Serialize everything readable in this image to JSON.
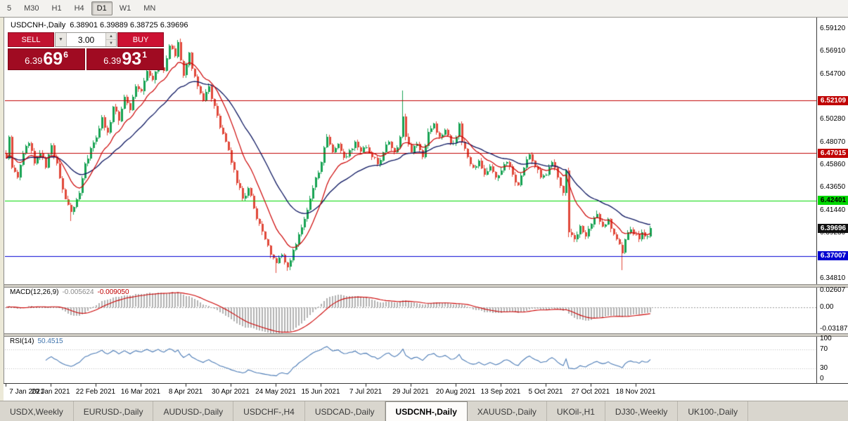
{
  "toolbar": {
    "items": [
      "5",
      "M30",
      "H1",
      "H4",
      "D1",
      "W1",
      "MN"
    ],
    "active": "D1"
  },
  "chart": {
    "header_symbol": "USDCNH-,Daily",
    "header_ohlc": "6.38901 6.39889 6.38725 6.39696"
  },
  "trade_panel": {
    "sell_label": "SELL",
    "buy_label": "BUY",
    "volume": "3.00",
    "sell": {
      "main": "6.39",
      "pips": "69",
      "point": "6"
    },
    "buy": {
      "main": "6.39",
      "pips": "93",
      "point": "1"
    }
  },
  "macd": {
    "name": "MACD(12,26,9)",
    "value_main": "-0.005624",
    "value_signal": "-0.009050",
    "scale": [
      "0.02607",
      "0.00",
      "-0.03187"
    ]
  },
  "rsi": {
    "name": "RSI(14)",
    "value": "50.4515",
    "scale": [
      "100",
      "70",
      "30",
      "0"
    ],
    "levels": [
      70,
      30
    ]
  },
  "time_axis": [
    "7 Jan 2021",
    "29 Jan 2021",
    "22 Feb 2021",
    "16 Mar 2021",
    "8 Apr 2021",
    "30 Apr 2021",
    "24 May 2021",
    "15 Jun 2021",
    "7 Jul 2021",
    "29 Jul 2021",
    "20 Aug 2021",
    "13 Sep 2021",
    "5 Oct 2021",
    "27 Oct 2021",
    "18 Nov 2021"
  ],
  "tabs": [
    {
      "label": "USDX,Weekly",
      "active": false
    },
    {
      "label": "EURUSD-,Daily",
      "active": false
    },
    {
      "label": "AUDUSD-,Daily",
      "active": false
    },
    {
      "label": "USDCHF-,H4",
      "active": false
    },
    {
      "label": "USDCAD-,Daily",
      "active": false
    },
    {
      "label": "USDCNH-,Daily",
      "active": true
    },
    {
      "label": "XAUUSD-,Daily",
      "active": false
    },
    {
      "label": "UKOil-,H1",
      "active": false
    },
    {
      "label": "DJ30-,Weekly",
      "active": false
    },
    {
      "label": "UK100-,Daily",
      "active": false
    }
  ],
  "chart_data": {
    "type": "candlestick",
    "symbol": "USDCNH-",
    "timeframe": "Daily",
    "candle_count": 230,
    "tick_every": 16,
    "y_min": 6.3425,
    "y_max": 6.602,
    "y_ticks": [
      6.5912,
      6.5691,
      6.547,
      6.5028,
      6.4807,
      6.4586,
      6.4365,
      6.4144,
      6.3923,
      6.3481
    ],
    "hlines": [
      {
        "price": 6.52109,
        "label": "6.52109",
        "color": "#c00000",
        "text_color": "#ffffff"
      },
      {
        "price": 6.47015,
        "label": "6.47015",
        "color": "#c00000",
        "text_color": "#ffffff"
      },
      {
        "price": 6.42401,
        "label": "6.42401",
        "color": "#00d800",
        "text_color": "#000000"
      },
      {
        "price": 6.37007,
        "label": "6.37007",
        "color": "#0000d0",
        "text_color": "#ffffff"
      }
    ],
    "price_tag": {
      "price": 6.39696,
      "label": "6.39696",
      "color": "#101010",
      "text_color": "#ffffff"
    },
    "up_color": "#17a253",
    "down_color": "#e0483a",
    "ma_fast": {
      "period": 12,
      "color": "#cc0000"
    },
    "ma_slow": {
      "period": 30,
      "color": "#0c1660"
    },
    "macd_range": [
      -0.0355,
      0.0285
    ],
    "noise": 0.0028,
    "first_open": 6.47,
    "waypoints": [
      [
        0,
        6.465
      ],
      [
        1,
        6.486
      ],
      [
        2,
        6.456
      ],
      [
        4,
        6.446
      ],
      [
        6,
        6.47
      ],
      [
        8,
        6.48
      ],
      [
        10,
        6.46
      ],
      [
        12,
        6.47
      ],
      [
        14,
        6.456
      ],
      [
        16,
        6.478
      ],
      [
        18,
        6.46
      ],
      [
        20,
        6.435
      ],
      [
        23,
        6.413
      ],
      [
        26,
        6.431
      ],
      [
        28,
        6.46
      ],
      [
        30,
        6.475
      ],
      [
        32,
        6.485
      ],
      [
        34,
        6.505
      ],
      [
        36,
        6.49
      ],
      [
        38,
        6.515
      ],
      [
        40,
        6.501
      ],
      [
        42,
        6.525
      ],
      [
        44,
        6.512
      ],
      [
        46,
        6.535
      ],
      [
        48,
        6.53
      ],
      [
        50,
        6.55
      ],
      [
        52,
        6.541
      ],
      [
        54,
        6.56
      ],
      [
        56,
        6.55
      ],
      [
        58,
        6.575
      ],
      [
        60,
        6.564
      ],
      [
        61,
        6.578
      ],
      [
        62,
        6.56
      ],
      [
        63,
        6.546
      ],
      [
        64,
        6.556
      ],
      [
        65,
        6.568
      ],
      [
        66,
        6.552
      ],
      [
        68,
        6.535
      ],
      [
        70,
        6.521
      ],
      [
        72,
        6.535
      ],
      [
        74,
        6.516
      ],
      [
        76,
        6.495
      ],
      [
        78,
        6.481
      ],
      [
        80,
        6.461
      ],
      [
        82,
        6.441
      ],
      [
        84,
        6.426
      ],
      [
        86,
        6.436
      ],
      [
        88,
        6.416
      ],
      [
        90,
        6.401
      ],
      [
        92,
        6.386
      ],
      [
        94,
        6.371
      ],
      [
        96,
        6.363
      ],
      [
        98,
        6.371
      ],
      [
        100,
        6.359
      ],
      [
        102,
        6.376
      ],
      [
        104,
        6.391
      ],
      [
        106,
        6.406
      ],
      [
        108,
        6.426
      ],
      [
        110,
        6.446
      ],
      [
        112,
        6.461
      ],
      [
        113,
        6.476
      ],
      [
        114,
        6.486
      ],
      [
        116,
        6.471
      ],
      [
        118,
        6.479
      ],
      [
        120,
        6.466
      ],
      [
        122,
        6.473
      ],
      [
        124,
        6.481
      ],
      [
        126,
        6.471
      ],
      [
        128,
        6.476
      ],
      [
        130,
        6.466
      ],
      [
        132,
        6.459
      ],
      [
        134,
        6.471
      ],
      [
        136,
        6.481
      ],
      [
        138,
        6.471
      ],
      [
        140,
        6.486
      ],
      [
        141,
        6.506
      ],
      [
        142,
        6.486
      ],
      [
        144,
        6.471
      ],
      [
        146,
        6.479
      ],
      [
        148,
        6.466
      ],
      [
        150,
        6.491
      ],
      [
        152,
        6.499
      ],
      [
        154,
        6.486
      ],
      [
        156,
        6.493
      ],
      [
        158,
        6.479
      ],
      [
        160,
        6.486
      ],
      [
        161,
        6.499
      ],
      [
        162,
        6.481
      ],
      [
        164,
        6.466
      ],
      [
        166,
        6.456
      ],
      [
        168,
        6.463
      ],
      [
        170,
        6.449
      ],
      [
        172,
        6.457
      ],
      [
        174,
        6.446
      ],
      [
        176,
        6.453
      ],
      [
        178,
        6.461
      ],
      [
        180,
        6.449
      ],
      [
        182,
        6.439
      ],
      [
        184,
        6.456
      ],
      [
        186,
        6.469
      ],
      [
        188,
        6.457
      ],
      [
        190,
        6.446
      ],
      [
        192,
        6.449
      ],
      [
        194,
        6.461
      ],
      [
        196,
        6.446
      ],
      [
        198,
        6.431
      ],
      [
        199,
        6.453
      ],
      [
        200,
        6.393
      ],
      [
        202,
        6.386
      ],
      [
        204,
        6.399
      ],
      [
        206,
        6.389
      ],
      [
        208,
        6.401
      ],
      [
        210,
        6.411
      ],
      [
        212,
        6.399
      ],
      [
        214,
        6.406
      ],
      [
        216,
        6.391
      ],
      [
        218,
        6.381
      ],
      [
        219,
        6.373
      ],
      [
        220,
        6.386
      ],
      [
        222,
        6.396
      ],
      [
        224,
        6.391
      ],
      [
        225,
        6.386
      ],
      [
        226,
        6.393
      ],
      [
        227,
        6.389
      ],
      [
        228,
        6.38901
      ],
      [
        229,
        6.39696
      ]
    ],
    "wick_events": [
      {
        "i": 23,
        "low": 6.404
      },
      {
        "i": 61,
        "high": 6.58
      },
      {
        "i": 96,
        "low": 6.3535
      },
      {
        "i": 100,
        "low": 6.3555
      },
      {
        "i": 141,
        "high": 6.531
      },
      {
        "i": 200,
        "low": 6.3885
      },
      {
        "i": 219,
        "low": 6.3565
      },
      {
        "i": 229,
        "high": 6.39889,
        "low": 6.38725
      }
    ]
  }
}
